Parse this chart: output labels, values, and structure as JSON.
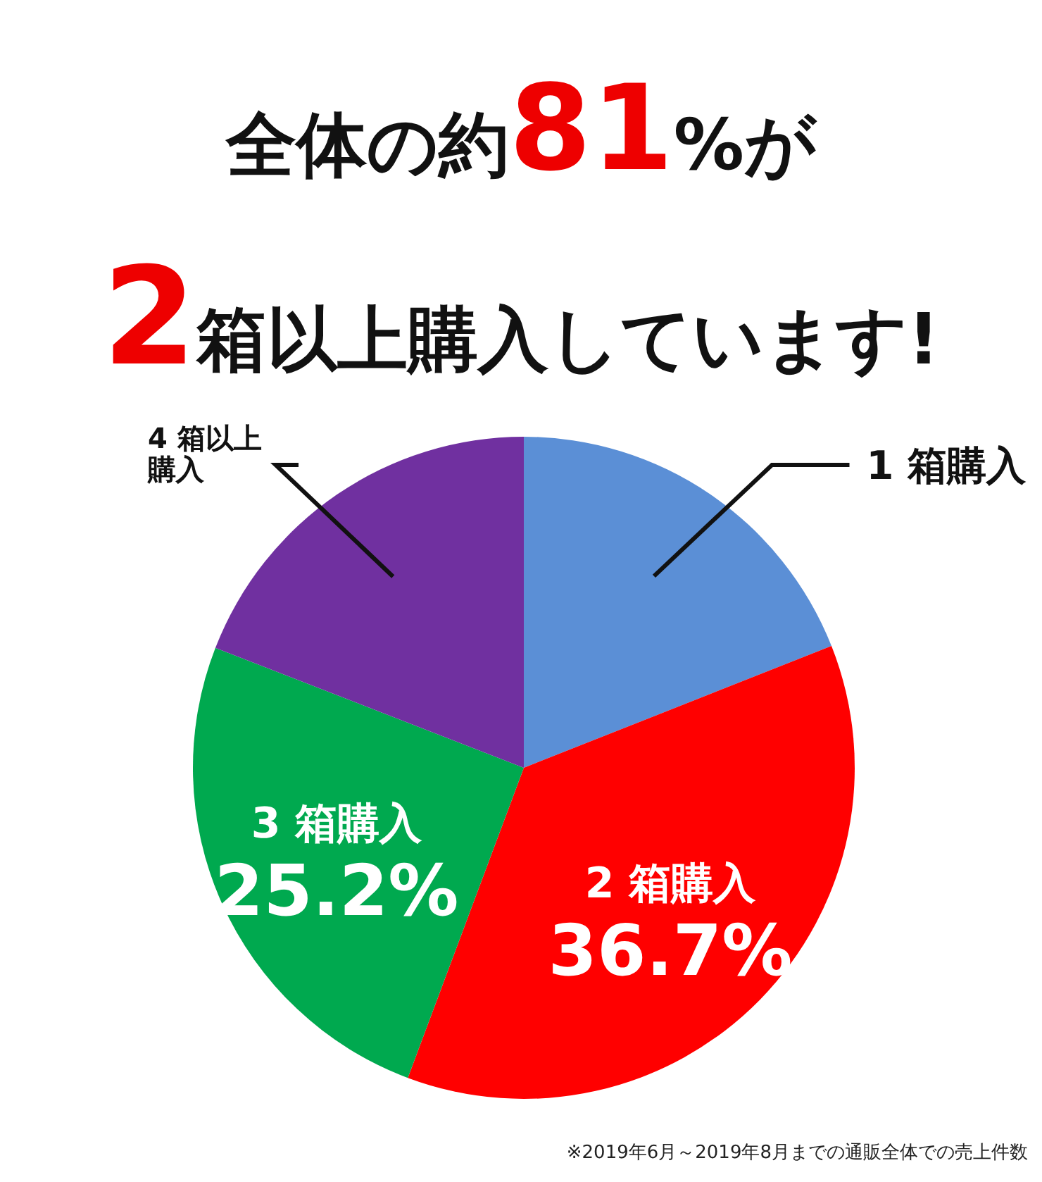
{
  "chart_data": {
    "type": "pie",
    "title": "全体の約81%が",
    "subtitle": "2箱以上購入しています!",
    "categories": [
      "1 箱購入",
      "2 箱購入",
      "3 箱購入",
      "4 箱以上購入"
    ],
    "values": [
      19,
      36.7,
      25.2,
      19.1
    ],
    "colors": [
      "#5b8fd6",
      "#ff0000",
      "#00a94f",
      "#7030a0"
    ],
    "value_labels": [
      null,
      "36.7%",
      "25.2%",
      null
    ],
    "annotations": [
      "※2019年6月～2019年8月までの通販全体での売上件数"
    ]
  }
}
